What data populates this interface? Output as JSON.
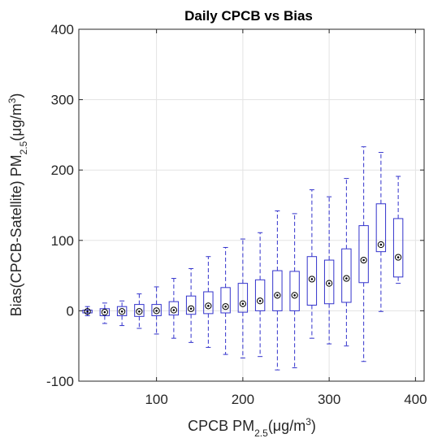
{
  "chart_data": {
    "type": "box",
    "title": "Daily CPCB vs Bias",
    "xlabel": {
      "main": "CPCB PM",
      "sub": "2.5",
      "unit_pre": "(μg/m",
      "sup": "3",
      "unit_post": ")"
    },
    "ylabel": {
      "main": "Bias(CPCB-Satellite) PM",
      "sub": "2.5",
      "unit_pre": "(μg/m",
      "sup": "3",
      "unit_post": ")"
    },
    "xlim": [
      10,
      410
    ],
    "ylim": [
      -100,
      400
    ],
    "xticks": [
      100,
      200,
      300,
      400
    ],
    "yticks": [
      -100,
      0,
      100,
      200,
      300,
      400
    ],
    "grid": true,
    "color": "#3333cc",
    "boxes": [
      {
        "x": 20,
        "wmin": -7,
        "q1": -3,
        "median": -1,
        "q3": 1,
        "wmax": 6
      },
      {
        "x": 40,
        "wmin": -18,
        "q1": -7,
        "median": -2,
        "q3": 3,
        "wmax": 11
      },
      {
        "x": 60,
        "wmin": -21,
        "q1": -7,
        "median": -1,
        "q3": 6,
        "wmax": 14
      },
      {
        "x": 80,
        "wmin": -25,
        "q1": -8,
        "median": -1,
        "q3": 9,
        "wmax": 24
      },
      {
        "x": 100,
        "wmin": -33,
        "q1": -7,
        "median": 0,
        "q3": 9,
        "wmax": 34
      },
      {
        "x": 120,
        "wmin": -39,
        "q1": -6,
        "median": 1,
        "q3": 13,
        "wmax": 46
      },
      {
        "x": 140,
        "wmin": -45,
        "q1": -5,
        "median": 3,
        "q3": 21,
        "wmax": 60
      },
      {
        "x": 160,
        "wmin": -52,
        "q1": -4,
        "median": 7,
        "q3": 27,
        "wmax": 77
      },
      {
        "x": 180,
        "wmin": -62,
        "q1": -3,
        "median": 6,
        "q3": 33,
        "wmax": 90
      },
      {
        "x": 200,
        "wmin": -67,
        "q1": -2,
        "median": 10,
        "q3": 39,
        "wmax": 102
      },
      {
        "x": 220,
        "wmin": -65,
        "q1": 0,
        "median": 14,
        "q3": 44,
        "wmax": 111
      },
      {
        "x": 240,
        "wmin": -84,
        "q1": 0,
        "median": 22,
        "q3": 57,
        "wmax": 142
      },
      {
        "x": 260,
        "wmin": -81,
        "q1": 0,
        "median": 22,
        "q3": 56,
        "wmax": 138
      },
      {
        "x": 280,
        "wmin": -39,
        "q1": 8,
        "median": 45,
        "q3": 77,
        "wmax": 172
      },
      {
        "x": 300,
        "wmin": -47,
        "q1": 10,
        "median": 39,
        "q3": 72,
        "wmax": 162
      },
      {
        "x": 320,
        "wmin": -50,
        "q1": 12,
        "median": 46,
        "q3": 88,
        "wmax": 188
      },
      {
        "x": 340,
        "wmin": -72,
        "q1": 40,
        "median": 72,
        "q3": 121,
        "wmax": 233
      },
      {
        "x": 360,
        "wmin": -1,
        "q1": 84,
        "median": 94,
        "q3": 152,
        "wmax": 225
      },
      {
        "x": 380,
        "wmin": 39,
        "q1": 48,
        "median": 76,
        "q3": 131,
        "wmax": 191
      }
    ]
  }
}
